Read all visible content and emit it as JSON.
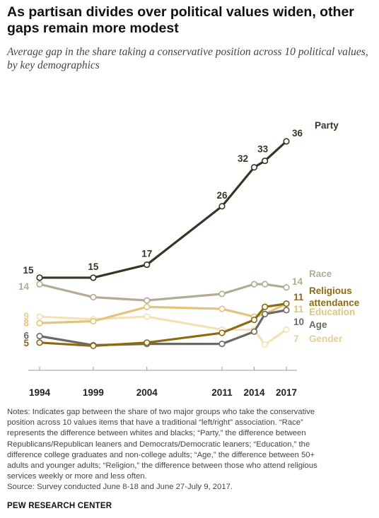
{
  "header": {
    "title": "As partisan divides over political values widen, other gaps remain more modest",
    "subtitle": "Average gap in the share taking a conservative position across 10 political values, by key demographics"
  },
  "chart_data": {
    "type": "line",
    "x": [
      1994,
      1999,
      2004,
      2011,
      2014,
      2015,
      2017
    ],
    "x_tick_labels": [
      "1994",
      "1999",
      "2004",
      "2011",
      "2014",
      "2017"
    ],
    "ylim": [
      3,
      38
    ],
    "grid": false,
    "legend": "direct labels at right end of lines",
    "series": [
      {
        "name": "Party",
        "color": "#3b3426",
        "values": [
          15,
          15,
          17,
          26,
          32,
          33,
          36
        ],
        "labels": [
          {
            "index": 0,
            "text": "15"
          },
          {
            "index": 1,
            "text": "15"
          },
          {
            "index": 2,
            "text": "17"
          },
          {
            "index": 3,
            "text": "26"
          },
          {
            "index": 4,
            "text": "32"
          },
          {
            "index": 5,
            "text": "33"
          },
          {
            "index": 6,
            "text": "36"
          }
        ]
      },
      {
        "name": "Race",
        "color": "#b5aa93",
        "values": [
          14,
          12,
          11.5,
          12.5,
          14,
          14,
          13.5
        ],
        "labels": [
          {
            "index": 0,
            "text": "14"
          },
          {
            "index": 6,
            "text": "14"
          }
        ]
      },
      {
        "name": "Religious attendance",
        "color": "#8c6a12",
        "values": [
          5,
          4.5,
          5,
          6.5,
          8.5,
          10.5,
          11
        ],
        "labels": [
          {
            "index": 0,
            "text": "5"
          },
          {
            "index": 6,
            "text": "11"
          }
        ]
      },
      {
        "name": "Education",
        "color": "#e2c47b",
        "values": [
          8,
          8.3,
          10.5,
          10.2,
          9,
          9.4,
          11
        ],
        "labels": [
          {
            "index": 0,
            "text": "8"
          },
          {
            "index": 6,
            "text": "11"
          }
        ]
      },
      {
        "name": "Age",
        "color": "#6b6a60",
        "values": [
          6,
          4.6,
          4.8,
          4.8,
          6.7,
          9.4,
          10
        ],
        "labels": [
          {
            "index": 0,
            "text": "6"
          },
          {
            "index": 6,
            "text": "10"
          }
        ]
      },
      {
        "name": "Gender",
        "color": "#f2e2b6",
        "values": [
          9,
          8.6,
          9,
          7,
          7,
          4.7,
          7
        ],
        "labels": [
          {
            "index": 0,
            "text": "9"
          },
          {
            "index": 6,
            "text": "7"
          }
        ]
      }
    ]
  },
  "notes": {
    "lines": [
      "Notes: Indicates gap between the share of two major groups who take the conservative",
      "position across 10 values items that have a traditional “left/right” association. “Race”",
      "represents the difference between whites and blacks; “Party,” the difference between",
      "Republicans/Republican leaners and Democrats/Democratic leaners; “Education,” the",
      "difference college graduates and non-college adults; “Age,” the difference between 50+",
      "adults and younger adults; “Religion,” the difference between those who attend religious",
      "services weekly or more and less often.",
      "Source: Survey conducted June 8-18 and June 27-July 9, 2017."
    ]
  },
  "footer": {
    "brand": "PEW RESEARCH CENTER"
  }
}
